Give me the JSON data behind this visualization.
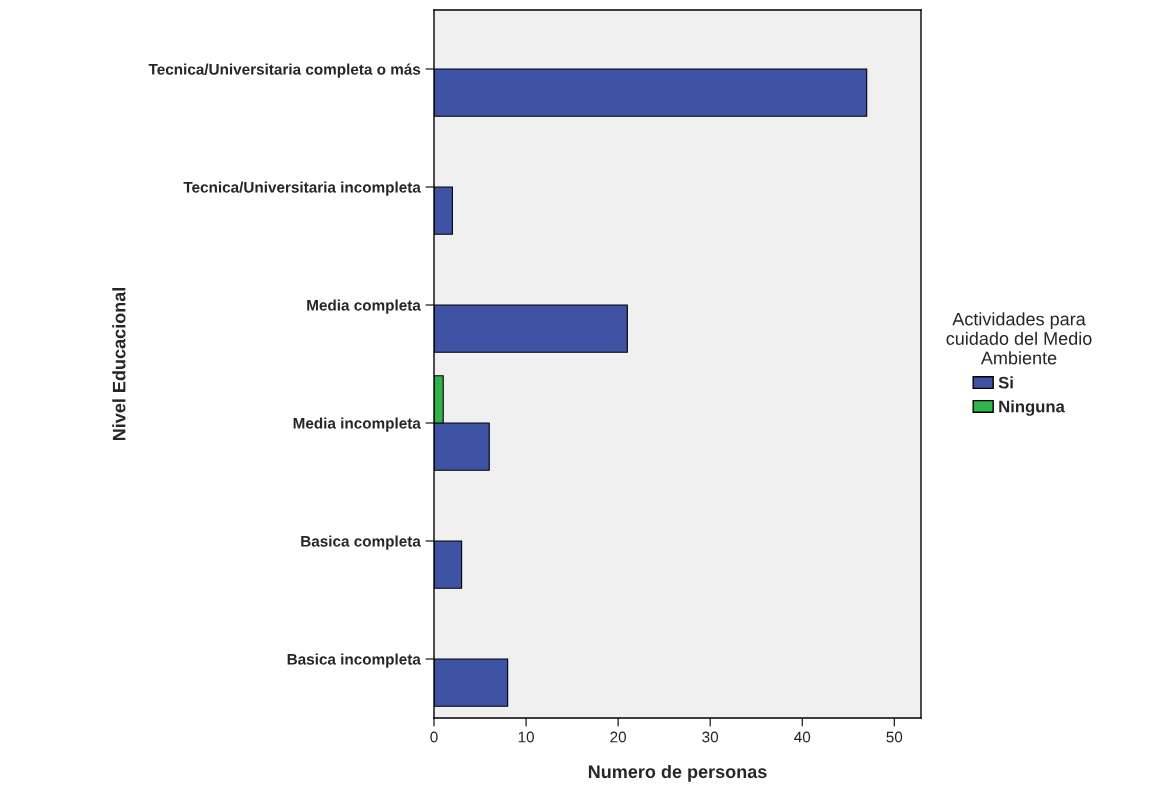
{
  "chart_data": {
    "type": "bar",
    "orientation": "horizontal",
    "xlabel": "Numero de personas",
    "ylabel": "Nivel Educacional",
    "legend_title": "Actividades para\ncuidado del Medio\nAmbiente",
    "legend": "right",
    "grid": false,
    "categories": [
      "Tecnica/Universitaria completa o más",
      "Tecnica/Universitaria incompleta",
      "Media completa",
      "Media incompleta",
      "Basica completa",
      "Basica incompleta"
    ],
    "series": [
      {
        "name": "Si",
        "color": "#3e53a4",
        "values": [
          47,
          2,
          21,
          6,
          3,
          8
        ]
      },
      {
        "name": "Ninguna",
        "color": "#2fb34a",
        "values": [
          null,
          null,
          null,
          1,
          null,
          null
        ]
      }
    ],
    "xlim": [
      0,
      52.9
    ],
    "xticks": [
      0,
      10,
      20,
      30,
      40,
      50
    ]
  }
}
